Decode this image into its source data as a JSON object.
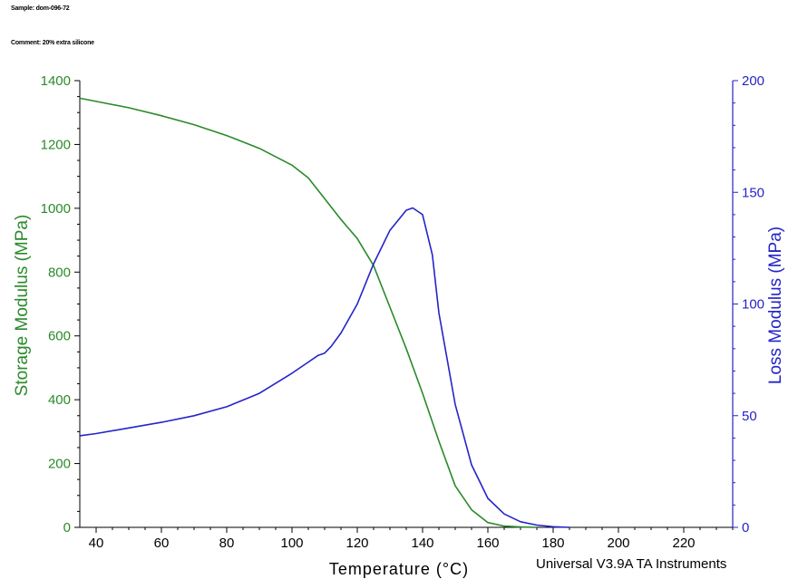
{
  "header": {
    "sample": "Sample: dom-096-72",
    "comment": "Comment: 20% extra silicone"
  },
  "footer": "Universal V3.9A TA Instruments",
  "colors": {
    "storage": "#2a8a2a",
    "loss": "#2424c8",
    "axis": "#000000"
  },
  "chart_data": {
    "type": "line",
    "xlabel": "Temperature (°C)",
    "xlim": [
      35,
      235
    ],
    "xticks": [
      40,
      60,
      80,
      100,
      120,
      140,
      160,
      180,
      200,
      220
    ],
    "y_left": {
      "label": "Storage Modulus (MPa)",
      "ylim": [
        0,
        1400
      ],
      "ticks": [
        0,
        200,
        400,
        600,
        800,
        1000,
        1200,
        1400
      ]
    },
    "y_right": {
      "label": "Loss Modulus (MPa)",
      "ylim": [
        0,
        200
      ],
      "ticks": [
        0,
        50,
        100,
        150,
        200
      ]
    },
    "grid": false,
    "series": [
      {
        "name": "Storage Modulus",
        "axis": "left",
        "color": "#2a8a2a",
        "x": [
          35,
          40,
          50,
          60,
          70,
          80,
          90,
          100,
          105,
          110,
          115,
          120,
          125,
          130,
          135,
          140,
          145,
          150,
          155,
          160,
          165,
          170,
          175
        ],
        "y": [
          1345,
          1335,
          1315,
          1290,
          1262,
          1228,
          1188,
          1135,
          1095,
          1030,
          965,
          905,
          820,
          690,
          560,
          420,
          270,
          130,
          55,
          15,
          4,
          1,
          0
        ]
      },
      {
        "name": "Loss Modulus",
        "axis": "right",
        "color": "#2424c8",
        "x": [
          35,
          40,
          50,
          60,
          70,
          80,
          90,
          100,
          105,
          108,
          110,
          112,
          115,
          120,
          125,
          130,
          135,
          137,
          140,
          143,
          145,
          150,
          155,
          160,
          165,
          170,
          175,
          180,
          185
        ],
        "y": [
          41,
          42,
          44.5,
          47,
          50,
          54,
          60,
          69,
          74,
          77,
          78,
          81,
          87,
          100,
          118,
          133,
          142,
          143,
          140,
          122,
          96,
          55,
          28,
          13,
          6,
          2.5,
          1,
          0.3,
          0
        ]
      }
    ]
  }
}
